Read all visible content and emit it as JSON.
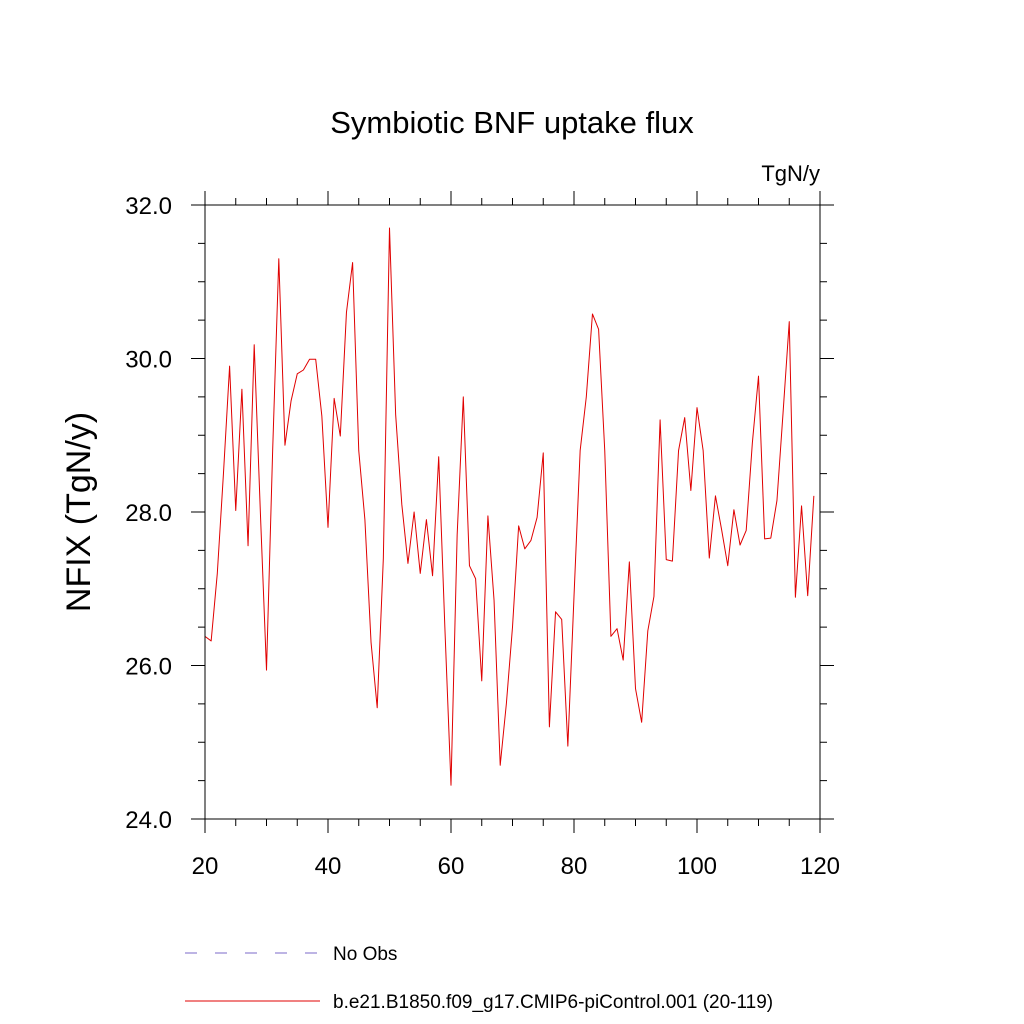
{
  "chart_data": {
    "type": "line",
    "title": "Symbiotic BNF uptake flux",
    "units": "TgN/y",
    "ylabel": "NFIX  (TgN/y)",
    "xlabel": "",
    "xlim": [
      20,
      120
    ],
    "ylim": [
      24.0,
      32.0
    ],
    "x_ticks": [
      20,
      40,
      60,
      80,
      100,
      120
    ],
    "x_tick_labels": [
      "20",
      "40",
      "60",
      "80",
      "100",
      "120"
    ],
    "y_ticks": [
      24.0,
      26.0,
      28.0,
      30.0,
      32.0
    ],
    "y_tick_labels": [
      "24.0",
      "26.0",
      "28.0",
      "30.0",
      "32.0"
    ],
    "legend": [
      {
        "label": "No Obs",
        "color": "#7b68c8",
        "style": "dashed"
      },
      {
        "label": "b.e21.B1850.f09_g17.CMIP6-piControl.001 (20-119)",
        "color": "#e00000",
        "style": "solid"
      }
    ],
    "series": [
      {
        "name": "b.e21.B1850.f09_g17.CMIP6-piControl.001 (20-119)",
        "color": "#e00000",
        "x": [
          20,
          21,
          22,
          23,
          24,
          25,
          26,
          27,
          28,
          29,
          30,
          31,
          32,
          33,
          34,
          35,
          36,
          37,
          38,
          39,
          40,
          41,
          42,
          43,
          44,
          45,
          46,
          47,
          48,
          49,
          50,
          51,
          52,
          53,
          54,
          55,
          56,
          57,
          58,
          59,
          60,
          61,
          62,
          63,
          64,
          65,
          66,
          67,
          68,
          69,
          70,
          71,
          72,
          73,
          74,
          75,
          76,
          77,
          78,
          79,
          80,
          81,
          82,
          83,
          84,
          85,
          86,
          87,
          88,
          89,
          90,
          91,
          92,
          93,
          94,
          95,
          96,
          97,
          98,
          99,
          100,
          101,
          102,
          103,
          104,
          105,
          106,
          107,
          108,
          109,
          110,
          111,
          112,
          113,
          114,
          115,
          116,
          117,
          118,
          119
        ],
        "values": [
          26.38,
          26.32,
          27.2,
          28.5,
          29.9,
          28.02,
          29.6,
          27.56,
          30.18,
          28.0,
          25.94,
          28.8,
          31.3,
          28.87,
          29.45,
          29.8,
          29.85,
          29.99,
          29.99,
          29.25,
          27.8,
          29.48,
          28.99,
          30.6,
          31.25,
          28.8,
          27.9,
          26.3,
          25.45,
          27.4,
          31.7,
          29.27,
          28.1,
          27.33,
          28.0,
          27.2,
          27.9,
          27.17,
          28.72,
          26.5,
          24.44,
          27.7,
          29.5,
          27.3,
          27.13,
          25.8,
          27.95,
          26.85,
          24.7,
          25.5,
          26.5,
          27.82,
          27.52,
          27.63,
          27.93,
          28.77,
          25.2,
          26.7,
          26.6,
          24.95,
          26.9,
          28.8,
          29.5,
          30.58,
          30.38,
          28.8,
          26.38,
          26.48,
          26.07,
          27.35,
          25.7,
          25.26,
          26.45,
          26.9,
          29.2,
          27.38,
          27.36,
          28.8,
          29.23,
          28.28,
          29.36,
          28.8,
          27.4,
          28.21,
          27.77,
          27.3,
          28.03,
          27.57,
          27.76,
          28.9,
          29.77,
          27.65,
          27.66,
          28.15,
          29.3,
          30.48,
          26.89,
          28.08,
          26.91,
          28.21
        ]
      }
    ]
  }
}
